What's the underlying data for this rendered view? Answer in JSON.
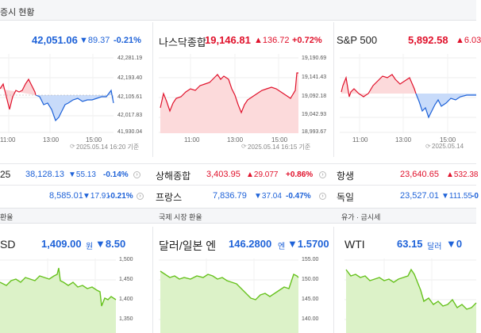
{
  "header": {
    "title": "증시 현황"
  },
  "indices": [
    {
      "name": "",
      "value": "42,051.06",
      "change": "▼89.37",
      "pct": "-0.21%",
      "time": "2025.05.14 16:20 기준",
      "y_ticks": [
        "42,281.19",
        "42,193.40",
        "42,105.61",
        "42,017.83",
        "41,930.04"
      ],
      "x_ticks": [
        "11:00",
        "13:00",
        "15:00"
      ]
    },
    {
      "name": "나스닥종합",
      "value": "19,146.81",
      "change": "▲136.72",
      "pct": "+0.72%",
      "time": "2025.05.14 16:15 기준",
      "y_ticks": [
        "19,190.69",
        "19,141.43",
        "19,092.18",
        "19,042.93",
        "18,993.67"
      ],
      "x_ticks": [
        "11:00",
        "13:00",
        "15:00"
      ]
    },
    {
      "name": "S&P 500",
      "value": "5,892.58",
      "change": "▲6.03",
      "pct": "",
      "time": "2025.05.14",
      "y_ticks": [],
      "x_ticks": [
        "11:00",
        "13:00",
        "15:00"
      ]
    }
  ],
  "rows": [
    [
      {
        "name": "25",
        "value": "38,128.13",
        "change": "▼55.13",
        "pct": "-0.14%"
      },
      {
        "name": "상해종합",
        "value": "3,403.95",
        "change": "▲29.077",
        "pct": "+0.86%"
      },
      {
        "name": "항생",
        "value": "23,640.65",
        "change": "▲532.38",
        "pct": ""
      }
    ],
    [
      {
        "name": "",
        "value": "8,585.01",
        "change": "▼17.91",
        "pct": "-0.21%"
      },
      {
        "name": "프랑스",
        "value": "7,836.79",
        "change": "▼37.04",
        "pct": "-0.47%"
      },
      {
        "name": "독일",
        "value": "23,527.01",
        "change": "▼111.55",
        "pct": "-0"
      }
    ]
  ],
  "sections": [
    "환율",
    "국제 시장 환율",
    "유가 · 금시세"
  ],
  "fx": [
    {
      "name": "SD",
      "value": "1,409.00",
      "unit": "원",
      "change": "▼8.50",
      "y_ticks": [
        "1,500",
        "1,450",
        "1,400",
        "1,350"
      ]
    },
    {
      "name": "달러/일본 엔",
      "value": "146.2800",
      "unit": "엔",
      "change": "▼1.5700",
      "y_ticks": [
        "155.00",
        "150.00",
        "145.00",
        "140.00"
      ]
    },
    {
      "name": "WTI",
      "value": "63.15",
      "unit": "달러",
      "change": "▼0",
      "y_ticks": []
    }
  ],
  "colors": {
    "up": "#e0112b",
    "down": "#1e62d8",
    "fx_line": "#67c21e"
  }
}
